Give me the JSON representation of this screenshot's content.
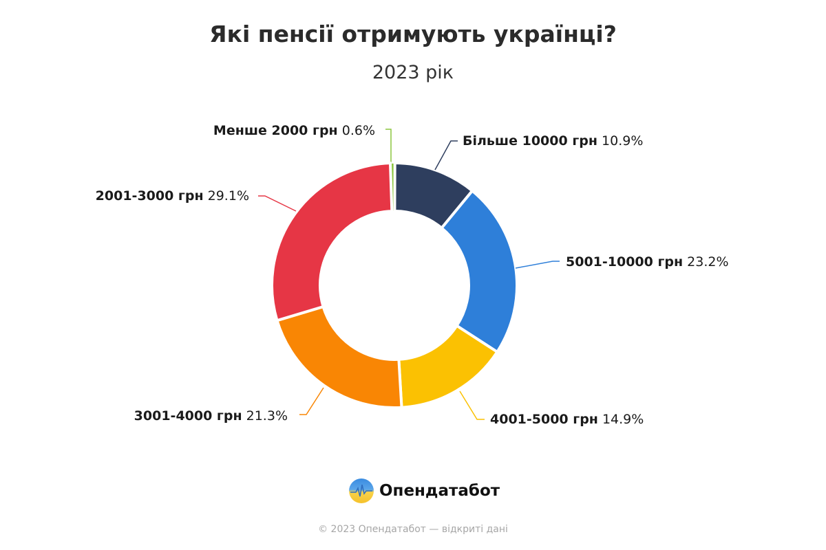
{
  "chart_data": {
    "type": "pie",
    "subtype": "donut",
    "title": "Які пенсії отримують українці?",
    "subtitle": "2023 рік",
    "slices": [
      {
        "label": "Менше 2000 грн",
        "value": 0.6,
        "value_label": "0.6%",
        "color": "#8cc63f"
      },
      {
        "label": "Більше 10000 грн",
        "value": 10.9,
        "value_label": "10.9%",
        "color": "#2e3e5e"
      },
      {
        "label": "5001-10000 грн",
        "value": 23.2,
        "value_label": "23.2%",
        "color": "#2e7fd9"
      },
      {
        "label": "4001-5000 грн",
        "value": 14.9,
        "value_label": "14.9%",
        "color": "#fbc102"
      },
      {
        "label": "3001-4000 грн",
        "value": 21.3,
        "value_label": "21.3%",
        "color": "#f98604"
      },
      {
        "label": "2001-3000 грн",
        "value": 29.1,
        "value_label": "29.1%",
        "color": "#e63645"
      }
    ],
    "legend": "none",
    "direction": "clockwise from top"
  },
  "branding": {
    "logo_text": "Опендатабот"
  },
  "footer": {
    "text": "© 2023 Опендатабот — відкриті дані"
  }
}
